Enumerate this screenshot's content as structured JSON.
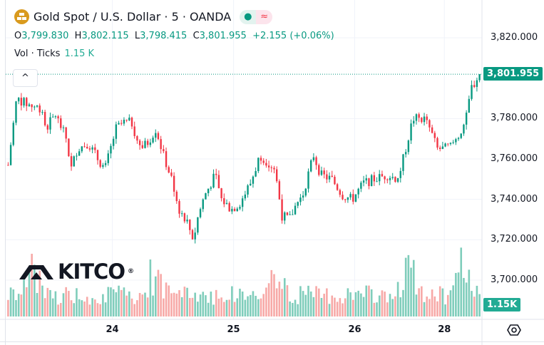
{
  "header": {
    "symbol": "Gold Spot / U.S. Dollar · 5 · OANDA",
    "symbol_icon": "gold-bars-icon",
    "status_dot": "●",
    "status_wave": "≈"
  },
  "ohlc": {
    "o_label": "O",
    "o": "3,799.830",
    "h_label": "H",
    "h": "3,802.115",
    "l_label": "L",
    "l": "3,798.415",
    "c_label": "C",
    "c": "3,801.955",
    "change": "+2.155 (+0.06%)"
  },
  "volume": {
    "label": "Vol · Ticks",
    "value": "1.15 K",
    "badge": "1.15K"
  },
  "collapse_icon": "^",
  "logo": {
    "text": "KITCO",
    "mark": "®"
  },
  "colors": {
    "up": "#089981",
    "down": "#f23645",
    "vol_up": "#7fcdbb",
    "vol_down": "#f7a9a7",
    "accent": "#22ab94"
  },
  "chart_data": {
    "type": "candlestick",
    "title": "Gold Spot / U.S. Dollar · 5 · OANDA",
    "ylim": [
      3680.6,
      3838.7
    ],
    "xlim": [
      23.12,
      27.05
    ],
    "y_ticks": [
      {
        "label": "3,820.000",
        "v": 3820
      },
      {
        "label": "3,780.000",
        "v": 3780
      },
      {
        "label": "3,760.000",
        "v": 3760
      },
      {
        "label": "3,740.000",
        "v": 3740
      },
      {
        "label": "3,720.000",
        "v": 3720
      },
      {
        "label": "3,700.000",
        "v": 3700
      }
    ],
    "x_ticks": [
      {
        "label": "24",
        "t": 24
      },
      {
        "label": "25",
        "t": 25
      },
      {
        "label": "26",
        "t": 26
      },
      {
        "label": "28",
        "t": 26.74
      }
    ],
    "last_price": {
      "label": "3,801.955",
      "v": 3801.955
    },
    "close_path": [
      [
        23.14,
        3757
      ],
      [
        23.21,
        3790
      ],
      [
        23.3,
        3787
      ],
      [
        23.42,
        3785
      ],
      [
        23.45,
        3775
      ],
      [
        23.53,
        3782
      ],
      [
        23.62,
        3770
      ],
      [
        23.66,
        3755
      ],
      [
        23.71,
        3765
      ],
      [
        23.8,
        3768
      ],
      [
        23.88,
        3760
      ],
      [
        23.94,
        3755
      ],
      [
        24.03,
        3775
      ],
      [
        24.09,
        3778
      ],
      [
        24.16,
        3778
      ],
      [
        24.23,
        3765
      ],
      [
        24.29,
        3768
      ],
      [
        24.36,
        3775
      ],
      [
        24.42,
        3762
      ],
      [
        24.5,
        3748
      ],
      [
        24.55,
        3735
      ],
      [
        24.61,
        3730
      ],
      [
        24.67,
        3720
      ],
      [
        24.7,
        3730
      ],
      [
        24.76,
        3742
      ],
      [
        24.85,
        3752
      ],
      [
        24.9,
        3740
      ],
      [
        24.98,
        3735
      ],
      [
        25.05,
        3738
      ],
      [
        25.14,
        3748
      ],
      [
        25.22,
        3762
      ],
      [
        25.29,
        3758
      ],
      [
        25.34,
        3755
      ],
      [
        25.4,
        3732
      ],
      [
        25.46,
        3730
      ],
      [
        25.52,
        3738
      ],
      [
        25.57,
        3742
      ],
      [
        25.66,
        3762
      ],
      [
        25.72,
        3752
      ],
      [
        25.81,
        3750
      ],
      [
        25.9,
        3742
      ],
      [
        25.98,
        3740
      ],
      [
        26.07,
        3748
      ],
      [
        26.16,
        3750
      ],
      [
        26.27,
        3752
      ],
      [
        26.36,
        3750
      ],
      [
        26.42,
        3765
      ],
      [
        26.48,
        3780
      ],
      [
        26.57,
        3780
      ],
      [
        26.62,
        3775
      ],
      [
        26.68,
        3765
      ],
      [
        26.74,
        3765
      ],
      [
        26.8,
        3767
      ],
      [
        26.86,
        3772
      ],
      [
        26.92,
        3780
      ],
      [
        26.96,
        3795
      ],
      [
        27.03,
        3802
      ]
    ],
    "volume_spikes_t": [
      23.33,
      24.35,
      25.38,
      26.45,
      26.88
    ]
  }
}
